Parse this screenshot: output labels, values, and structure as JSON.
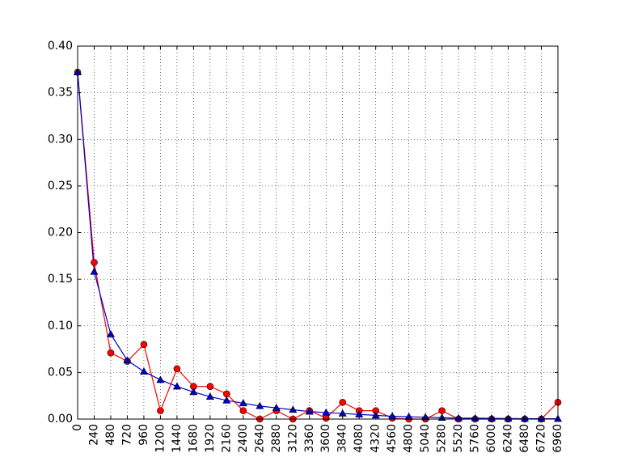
{
  "chart_data": {
    "type": "line",
    "x": [
      0,
      240,
      480,
      720,
      960,
      1200,
      1440,
      1680,
      1920,
      2160,
      2400,
      2640,
      2880,
      3120,
      3360,
      3600,
      3840,
      4080,
      4320,
      4560,
      4800,
      5040,
      5280,
      5520,
      5760,
      6000,
      6240,
      6480,
      6720,
      6960
    ],
    "xticks": [
      "0",
      "240",
      "480",
      "720",
      "960",
      "1200",
      "1440",
      "1680",
      "1920",
      "2160",
      "2400",
      "2640",
      "2880",
      "3120",
      "3360",
      "3600",
      "3840",
      "4080",
      "4320",
      "4560",
      "4800",
      "5040",
      "5280",
      "5520",
      "5760",
      "6000",
      "6240",
      "6480",
      "6720",
      "6960"
    ],
    "yticks": [
      "0.00",
      "0.05",
      "0.10",
      "0.15",
      "0.20",
      "0.25",
      "0.30",
      "0.35",
      "0.40"
    ],
    "ylim": [
      0,
      0.4
    ],
    "xlim": [
      0,
      6960
    ],
    "grid": true,
    "series": [
      {
        "color": "#ff0000",
        "marker": "circle",
        "values": [
          0.372,
          0.168,
          0.071,
          0.062,
          0.08,
          0.009,
          0.054,
          0.035,
          0.035,
          0.027,
          0.009,
          0.0,
          0.009,
          0.0,
          0.009,
          0.001,
          0.018,
          0.009,
          0.009,
          0.001,
          0.0,
          0.0,
          0.009,
          0.0,
          0.0,
          0.0,
          0.0,
          0.0,
          0.0,
          0.018
        ]
      },
      {
        "color": "#0000cc",
        "marker": "triangle",
        "values": [
          0.372,
          0.158,
          0.091,
          0.063,
          0.051,
          0.042,
          0.035,
          0.029,
          0.024,
          0.02,
          0.017,
          0.014,
          0.012,
          0.01,
          0.008,
          0.007,
          0.006,
          0.005,
          0.004,
          0.003,
          0.0025,
          0.002,
          0.0015,
          0.001,
          0.001,
          0.0008,
          0.0006,
          0.0005,
          0.0004,
          0.0003
        ]
      }
    ]
  }
}
